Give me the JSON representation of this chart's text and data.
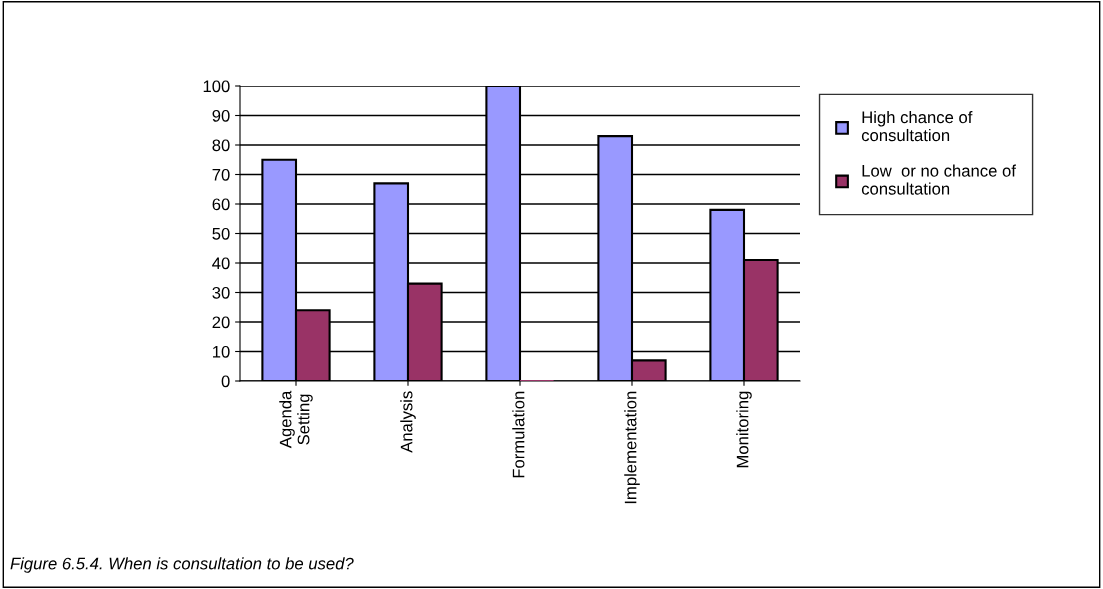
{
  "chart_data": {
    "type": "bar",
    "categories": [
      "Agenda\nSetting",
      "Analysis",
      "Formulation",
      "Implementation",
      "Monitoring"
    ],
    "series": [
      {
        "name": "High chance of\nconsultation",
        "color": "#9999ff",
        "values": [
          75,
          67,
          100,
          83,
          58
        ]
      },
      {
        "name": "Low  or no chance of\nconsultation",
        "color": "#993366",
        "values": [
          24,
          33,
          0,
          7,
          41
        ]
      }
    ],
    "ylim": [
      0,
      100
    ],
    "yticks": [
      0,
      10,
      20,
      30,
      40,
      50,
      60,
      70,
      80,
      90,
      100
    ],
    "grid": "y",
    "legend": "right",
    "annotations": [
      "Figure 6.5.4. When is consultation to be used?"
    ]
  }
}
